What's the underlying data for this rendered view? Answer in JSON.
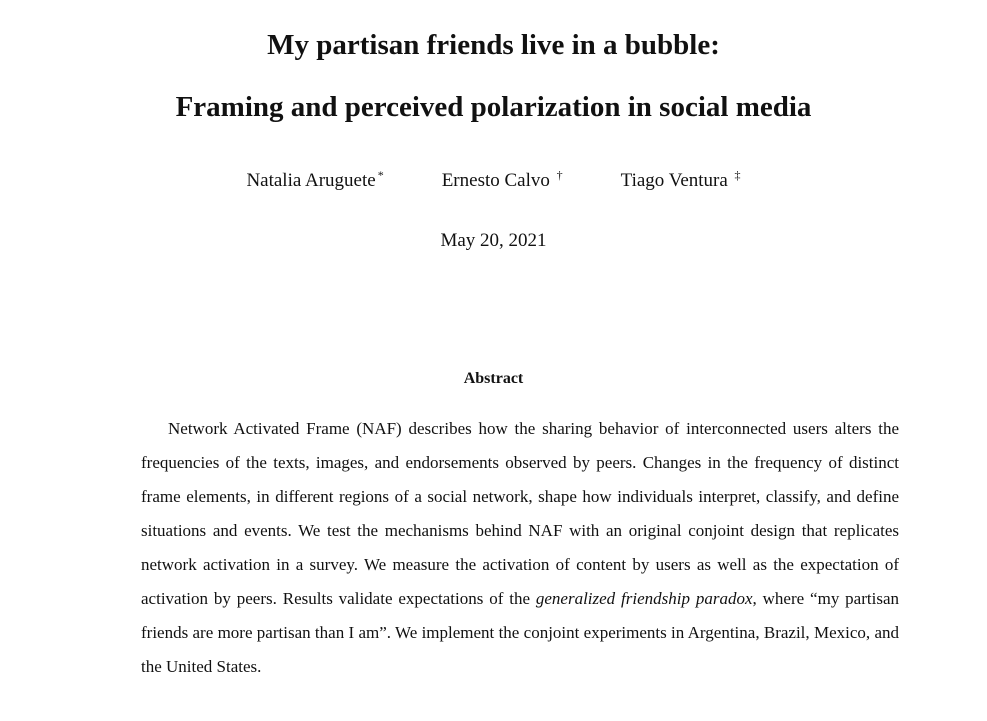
{
  "paper": {
    "title_line1": "My partisan friends live in a bubble:",
    "title_line2": "Framing and perceived polarization in social media",
    "authors": [
      {
        "name": "Natalia Aruguete",
        "mark": "*"
      },
      {
        "name": "Ernesto Calvo",
        "mark": "†"
      },
      {
        "name": "Tiago Ventura",
        "mark": "‡"
      }
    ],
    "date": "May 20, 2021",
    "abstract_heading": "Abstract",
    "abstract": {
      "part1": "Network Activated Frame (NAF) describes how the sharing behavior of interconnected users alters the frequencies of the texts, images, and endorsements observed by peers. Changes in the frequency of distinct frame elements, in different regions of a social network, shape how individuals interpret, classify, and define situations and events. We test the mechanisms behind NAF with an original conjoint design that replicates network activation in a survey. We measure the activation of content by users as well as the expectation of activation by peers. Results validate expectations of the ",
      "emphasis": "generalized friendship paradox",
      "part2": ", where “my partisan friends are more partisan than I am”. We implement the conjoint experiments in Argentina, Brazil, Mexico, and the United States."
    }
  }
}
